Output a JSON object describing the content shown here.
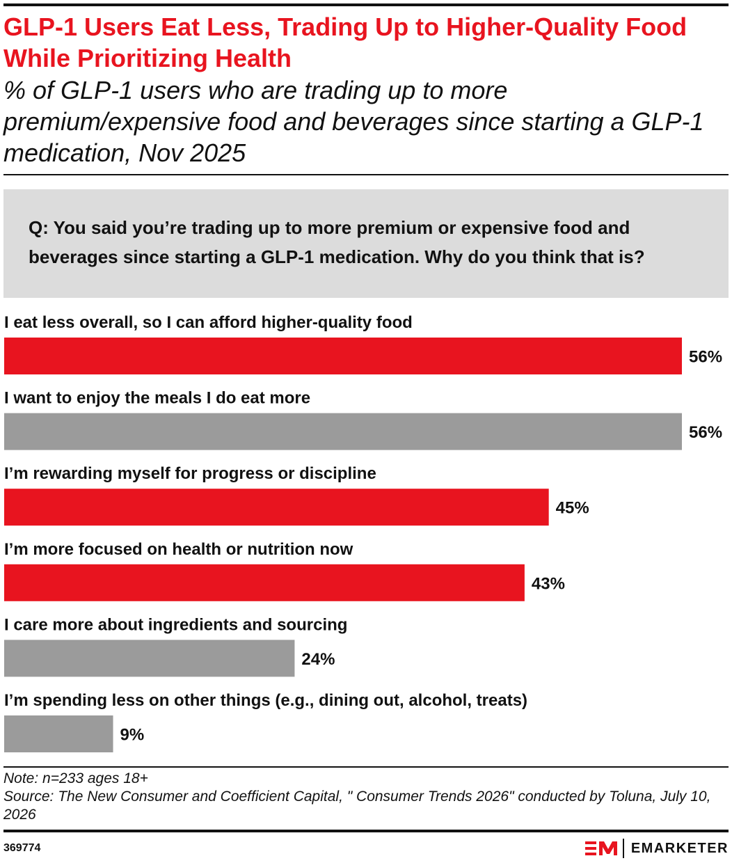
{
  "header": {
    "title": "GLP-1 Users Eat Less, Trading Up to Higher-Quality Food While Prioritizing Health",
    "subtitle": "% of GLP-1 users who are trading up to more premium/expensive food and beverages since starting a GLP-1 medication, Nov 2025"
  },
  "question": "Q: You said you’re trading up to more premium or expensive food and beverages since starting a GLP-1 medication. Why do you think that is?",
  "colors": {
    "red": "#e8141f",
    "gray": "#9b9b9b",
    "question_bg": "#dcdcdc",
    "text": "#111111"
  },
  "chart_data": {
    "type": "bar",
    "orientation": "horizontal",
    "categories": [
      "I eat less overall, so I can afford higher-quality food",
      "I want to enjoy the meals I do eat more",
      "I’m rewarding myself for progress or discipline",
      "I’m more focused on health or nutrition now",
      "I care more about ingredients and sourcing",
      "I’m spending less on other things (e.g., dining out, alcohol, treats)"
    ],
    "values": [
      56,
      56,
      45,
      43,
      24,
      9
    ],
    "value_labels": [
      "56%",
      "56%",
      "45%",
      "43%",
      "24%",
      "9%"
    ],
    "bar_colors": [
      "#e8141f",
      "#9b9b9b",
      "#e8141f",
      "#e8141f",
      "#9b9b9b",
      "#9b9b9b"
    ],
    "xlim": [
      0,
      56
    ],
    "grid": false,
    "legend": "none"
  },
  "footer": {
    "note": "Note: n=233 ages 18+",
    "source": "Source: The New Consumer and Coefficient Capital, \" Consumer Trends 2026\" conducted by Toluna, July 10, 2026",
    "chart_id": "369774",
    "brand": "EMARKETER",
    "brand_logo": "em-logo-icon"
  }
}
